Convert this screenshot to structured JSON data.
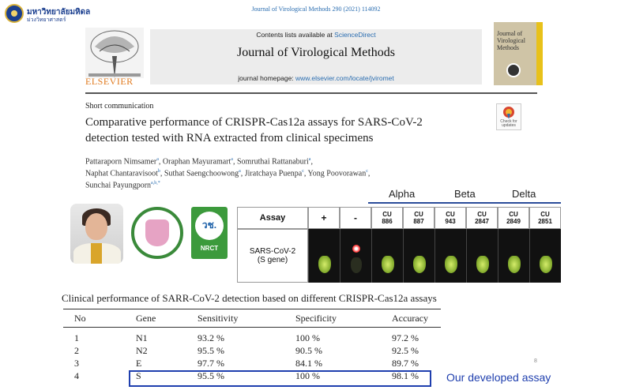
{
  "university": {
    "name": "มหาวิทยาลัยมหิดล",
    "sub": "ม่วงวิทยาศาสตร์"
  },
  "citation": "Journal of Virological Methods 290 (2021) 114092",
  "header": {
    "contents_prefix": "Contents lists available at ",
    "contents_link": "ScienceDirect",
    "journal_title": "Journal of Virological Methods",
    "homepage_prefix": "journal homepage: ",
    "homepage_url": "www.elsevier.com/locate/jviromet",
    "publisher": "ELSEVIER",
    "cover_title": "Journal of Virological Methods",
    "check_updates": "Check for updates"
  },
  "article": {
    "type": "Short communication",
    "title_line1": "Comparative performance of CRISPR-Cas12a assays for SARS-CoV-2",
    "title_line2": "detection tested with RNA extracted from clinical specimens",
    "authors": [
      {
        "text": "Pattaraporn Nimsamer",
        "sup": "a"
      },
      {
        "text": ", Oraphan Mayuramart",
        "sup": "a"
      },
      {
        "text": ", Somruthai Rattanaburi",
        "sup": "a"
      },
      {
        "text": ",",
        "sup": ""
      },
      {
        "text": "Naphat Chantaravisoot",
        "sup": "b"
      },
      {
        "text": ", Suthat Saengchoowong",
        "sup": "a"
      },
      {
        "text": ", Jiratchaya Puenpa",
        "sup": "c"
      },
      {
        "text": ", Yong Poovorawan",
        "sup": "c"
      },
      {
        "text": ",",
        "sup": ""
      },
      {
        "text": "Sunchai Payungporn",
        "sup": "a,b,*"
      }
    ]
  },
  "logos": {
    "nrct_mark": "วช.",
    "nrct_text": "NRCT"
  },
  "variants": {
    "alpha": "Alpha",
    "beta": "Beta",
    "delta": "Delta"
  },
  "assay_table": {
    "assay_header": "Assay",
    "columns": [
      "+",
      "-",
      "CU\n886",
      "CU\n887",
      "CU\n943",
      "CU\n2847",
      "CU\n2849",
      "CU\n2851"
    ],
    "row_label_1": "SARS-CoV-2",
    "row_label_2": "(S gene)",
    "results": [
      "positive",
      "negative",
      "positive",
      "positive",
      "positive",
      "positive",
      "positive",
      "positive"
    ]
  },
  "performance": {
    "title": "Clinical performance of SARR-CoV-2 detection based on different CRISPR-Cas12a assays",
    "headers": [
      "No",
      "Gene",
      "Sensitivity",
      "Specificity",
      "Accuracy"
    ],
    "rows": [
      [
        "1",
        "N1",
        "93.2 %",
        "100 %",
        "97.2 %"
      ],
      [
        "2",
        "N2",
        "95.5 %",
        "90.5 %",
        "92.5 %"
      ],
      [
        "3",
        "E",
        "97.7 %",
        "84.1 %",
        "89.7 %"
      ],
      [
        "4",
        "S",
        "95.5 %",
        "100 %",
        "98.1 %"
      ]
    ],
    "note": "Our developed assay"
  },
  "page_number": "8"
}
